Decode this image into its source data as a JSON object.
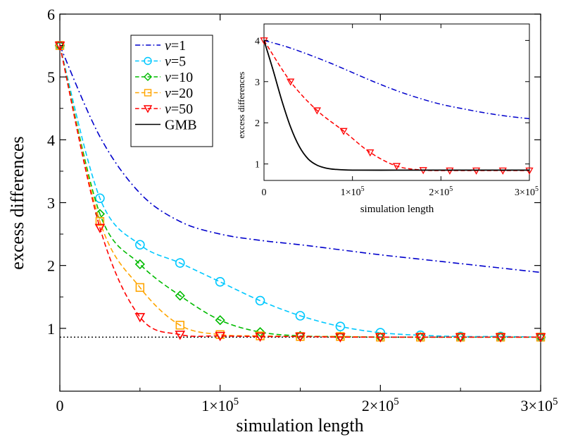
{
  "chart_data": [
    {
      "type": "line",
      "title": "",
      "xlabel": "simulation length",
      "ylabel": "excess differences",
      "xlim": [
        0,
        300000
      ],
      "ylim": [
        0,
        6
      ],
      "x_ticks": [
        {
          "value": 0,
          "label": "0",
          "mant": "",
          "exp": ""
        },
        {
          "value": 100000,
          "label": "",
          "mant": "1×10",
          "exp": "5"
        },
        {
          "value": 200000,
          "label": "",
          "mant": "2×10",
          "exp": "5"
        },
        {
          "value": 300000,
          "label": "",
          "mant": "3×10",
          "exp": "5"
        }
      ],
      "y_ticks": [
        {
          "value": 1,
          "label": "1"
        },
        {
          "value": 2,
          "label": "2"
        },
        {
          "value": 3,
          "label": "3"
        },
        {
          "value": 4,
          "label": "4"
        },
        {
          "value": 5,
          "label": "5"
        },
        {
          "value": 6,
          "label": "6"
        }
      ],
      "reference_line": {
        "y": 0.86,
        "style": "dotted"
      },
      "legend_position": "top-left",
      "series": [
        {
          "name": "v=1",
          "legend_var": "v",
          "legend_val": "=1",
          "color": "#0000cc",
          "dash": "dashdot",
          "marker": "none",
          "x": [
            0,
            25000,
            50000,
            75000,
            100000,
            125000,
            150000,
            175000,
            200000,
            225000,
            250000,
            275000,
            300000
          ],
          "values": [
            5.5,
            4.05,
            3.15,
            2.7,
            2.5,
            2.4,
            2.33,
            2.25,
            2.17,
            2.1,
            2.03,
            1.96,
            1.89
          ]
        },
        {
          "name": "v=5",
          "legend_var": "v",
          "legend_val": "=5",
          "color": "#00c8ff",
          "dash": "dashed",
          "marker": "circle",
          "x": [
            0,
            25000,
            50000,
            75000,
            100000,
            125000,
            150000,
            175000,
            200000,
            225000,
            250000,
            275000,
            300000
          ],
          "values": [
            5.5,
            3.07,
            2.33,
            2.04,
            1.74,
            1.44,
            1.2,
            1.03,
            0.93,
            0.89,
            0.87,
            0.87,
            0.86
          ]
        },
        {
          "name": "v=10",
          "legend_var": "v",
          "legend_val": "=10",
          "color": "#00bb00",
          "dash": "dashed",
          "marker": "diamond",
          "x": [
            0,
            25000,
            50000,
            75000,
            100000,
            125000,
            150000,
            175000,
            200000,
            225000,
            250000,
            275000,
            300000
          ],
          "values": [
            5.5,
            2.82,
            2.02,
            1.52,
            1.13,
            0.94,
            0.88,
            0.87,
            0.86,
            0.86,
            0.86,
            0.86,
            0.86
          ]
        },
        {
          "name": "v=20",
          "legend_var": "v",
          "legend_val": "=20",
          "color": "#ffa500",
          "dash": "dashed",
          "marker": "square",
          "x": [
            0,
            25000,
            50000,
            75000,
            100000,
            125000,
            150000,
            175000,
            200000,
            225000,
            250000,
            275000,
            300000
          ],
          "values": [
            5.5,
            2.7,
            1.65,
            1.05,
            0.9,
            0.88,
            0.87,
            0.87,
            0.86,
            0.86,
            0.86,
            0.86,
            0.86
          ]
        },
        {
          "name": "v=50",
          "legend_var": "v",
          "legend_val": "=50",
          "color": "#ff0000",
          "dash": "dashed",
          "marker": "triangle-down",
          "x": [
            0,
            25000,
            50000,
            75000,
            100000,
            125000,
            150000,
            175000,
            200000,
            225000,
            250000,
            275000,
            300000
          ],
          "values": [
            5.5,
            2.6,
            1.18,
            0.9,
            0.88,
            0.87,
            0.87,
            0.86,
            0.86,
            0.86,
            0.86,
            0.86,
            0.86
          ]
        },
        {
          "name": "GMB",
          "legend_var": "",
          "legend_val": "GMB",
          "color": "#000000",
          "dash": "solid",
          "marker": "none",
          "x": [],
          "values": []
        }
      ]
    },
    {
      "type": "line",
      "title": "",
      "xlabel": "simulation length",
      "ylabel": "excess differences",
      "xlim": [
        0,
        300000
      ],
      "ylim": [
        0.6,
        4.4
      ],
      "x_ticks": [
        {
          "value": 0,
          "label": "0",
          "mant": "",
          "exp": ""
        },
        {
          "value": 100000,
          "label": "",
          "mant": "1×10",
          "exp": "5"
        },
        {
          "value": 200000,
          "label": "",
          "mant": "2×10",
          "exp": "5"
        },
        {
          "value": 300000,
          "label": "",
          "mant": "3×10",
          "exp": "5"
        }
      ],
      "y_ticks": [
        {
          "value": 1,
          "label": "1"
        },
        {
          "value": 2,
          "label": "2"
        },
        {
          "value": 3,
          "label": "3"
        },
        {
          "value": 4,
          "label": "4"
        }
      ],
      "series": [
        {
          "name": "v=1",
          "color": "#0000cc",
          "dash": "dashdot",
          "marker": "none",
          "x": [
            0,
            25000,
            50000,
            75000,
            100000,
            125000,
            150000,
            175000,
            200000,
            225000,
            250000,
            275000,
            300000
          ],
          "values": [
            4.0,
            3.85,
            3.66,
            3.45,
            3.22,
            2.99,
            2.78,
            2.6,
            2.45,
            2.34,
            2.24,
            2.16,
            2.1
          ]
        },
        {
          "name": "v=50",
          "color": "#ff0000",
          "dash": "dashed",
          "marker": "triangle-down",
          "x": [
            0,
            30000,
            60000,
            90000,
            120000,
            150000,
            180000,
            210000,
            240000,
            270000,
            300000
          ],
          "values": [
            4.0,
            3.0,
            2.3,
            1.8,
            1.28,
            0.95,
            0.85,
            0.84,
            0.84,
            0.84,
            0.84
          ]
        },
        {
          "name": "GMB",
          "color": "#000000",
          "dash": "solid",
          "marker": "none",
          "x": [
            0,
            10000,
            20000,
            30000,
            40000,
            50000,
            60000,
            70000,
            80000,
            100000,
            150000,
            200000,
            300000
          ],
          "values": [
            4.0,
            3.3,
            2.55,
            1.9,
            1.42,
            1.12,
            0.97,
            0.9,
            0.87,
            0.85,
            0.85,
            0.85,
            0.85
          ]
        }
      ]
    }
  ]
}
